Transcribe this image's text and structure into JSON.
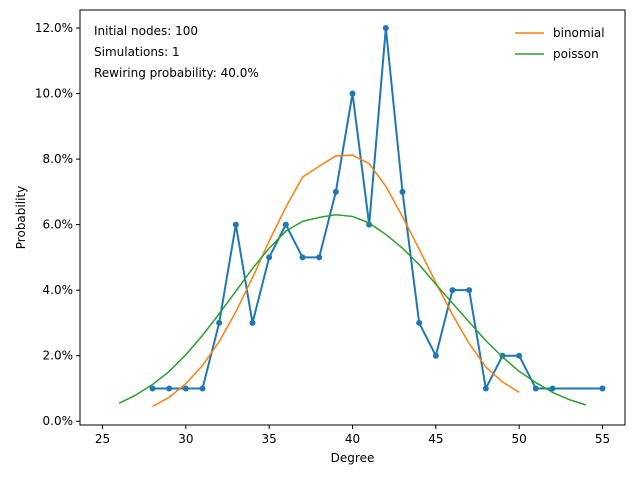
{
  "chart_data": {
    "type": "line",
    "xlabel": "Degree",
    "ylabel": "Probability",
    "xlim": [
      23.65,
      56.35
    ],
    "ylim": [
      -0.00115,
      0.1255
    ],
    "xticks": [
      25,
      30,
      35,
      40,
      45,
      50,
      55
    ],
    "xtick_labels": [
      "25",
      "30",
      "35",
      "40",
      "45",
      "50",
      "55"
    ],
    "yticks": [
      0,
      0.02,
      0.04,
      0.06,
      0.08,
      0.1,
      0.12
    ],
    "ytick_labels": [
      "0.0%",
      "2.0%",
      "4.0%",
      "6.0%",
      "8.0%",
      "10.0%",
      "12.0%"
    ],
    "grid": false,
    "legend_position": "top-right",
    "annotations": [
      "Initial nodes: 100",
      "Simulations: 1",
      "Rewiring probability: 40.0%"
    ],
    "series": [
      {
        "color": "#1f77b4",
        "markers": true,
        "x": [
          28,
          29,
          30,
          31,
          32,
          33,
          34,
          35,
          36,
          37,
          38,
          39,
          40,
          41,
          42,
          43,
          44,
          45,
          46,
          47,
          48,
          49,
          50,
          51,
          52,
          55
        ],
        "y": [
          0.01,
          0.01,
          0.01,
          0.01,
          0.03,
          0.06,
          0.03,
          0.05,
          0.06,
          0.05,
          0.05,
          0.07,
          0.1,
          0.06,
          0.12,
          0.07,
          0.03,
          0.02,
          0.04,
          0.04,
          0.01,
          0.02,
          0.02,
          0.01,
          0.01,
          0.01
        ]
      },
      {
        "name": "binomial",
        "color": "#ff7f0e",
        "markers": false,
        "x": [
          28,
          29,
          30,
          31,
          32,
          33,
          34,
          35,
          36,
          37,
          38,
          39,
          40,
          41,
          42,
          43,
          44,
          45,
          46,
          47,
          48,
          49,
          50
        ],
        "y": [
          0.0045,
          0.0073,
          0.0115,
          0.017,
          0.0243,
          0.0334,
          0.0438,
          0.055,
          0.0653,
          0.0745,
          0.0778,
          0.081,
          0.0812,
          0.0786,
          0.0717,
          0.0624,
          0.0525,
          0.0423,
          0.0325,
          0.0237,
          0.0165,
          0.012,
          0.0088
        ]
      },
      {
        "name": "poisson",
        "color": "#2ca02c",
        "markers": false,
        "x": [
          26,
          27,
          28,
          29,
          30,
          31,
          32,
          33,
          34,
          35,
          36,
          37,
          38,
          39,
          40,
          41,
          42,
          43,
          44,
          45,
          46,
          47,
          48,
          49,
          50,
          51,
          52,
          53,
          54
        ],
        "y": [
          0.0055,
          0.008,
          0.0112,
          0.0152,
          0.0203,
          0.0262,
          0.0328,
          0.0397,
          0.0466,
          0.0528,
          0.058,
          0.061,
          0.0622,
          0.063,
          0.0625,
          0.0605,
          0.057,
          0.0528,
          0.0478,
          0.0418,
          0.036,
          0.0303,
          0.0246,
          0.0196,
          0.0152,
          0.0118,
          0.0088,
          0.0066,
          0.005
        ]
      }
    ]
  }
}
